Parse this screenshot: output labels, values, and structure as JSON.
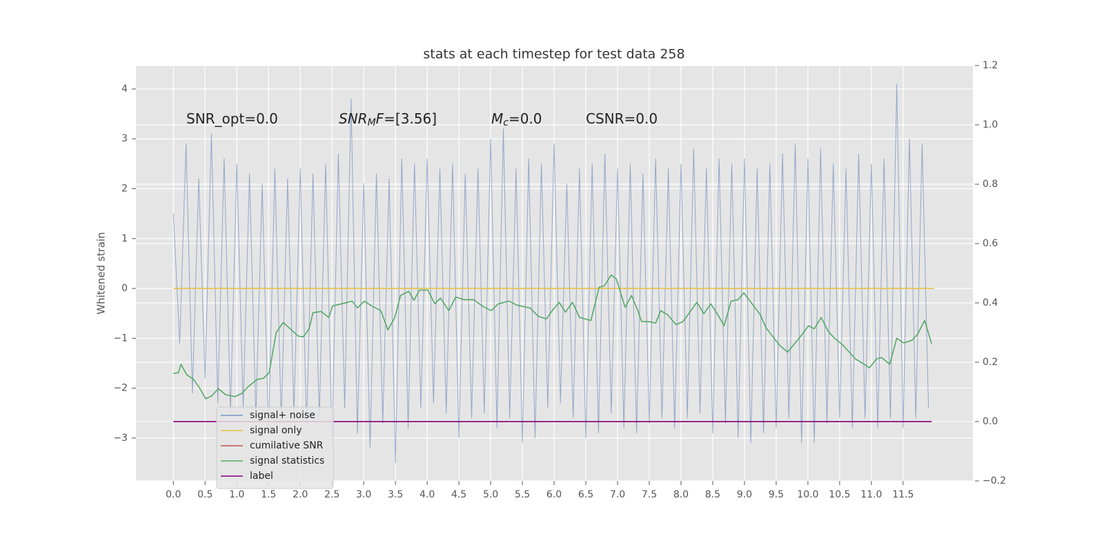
{
  "chart_data": {
    "type": "line",
    "title": "stats at each timestep for test data 258",
    "y_label": "Whitened strain",
    "background": "#e5e5e5",
    "grid": true,
    "legend": "lower left",
    "xlim": [
      -0.59,
      12.6
    ],
    "ylim": [
      -3.86,
      4.47
    ],
    "y2lim": [
      -0.2,
      1.2
    ],
    "xticks": [
      {
        "value": 0,
        "label": "0.0"
      },
      0.5,
      {
        "value": 1,
        "label": "1.0"
      },
      1.5,
      {
        "value": 2,
        "label": "2.0"
      },
      2.5,
      {
        "value": 3,
        "label": "3.0"
      },
      3.5,
      {
        "value": 4,
        "label": "4.0"
      },
      4.5,
      {
        "value": 5,
        "label": "5.0"
      },
      5.5,
      {
        "value": 6,
        "label": "6.0"
      },
      6.5,
      {
        "value": 7,
        "label": "7.0"
      },
      7.5,
      {
        "value": 8,
        "label": "8.0"
      },
      8.5,
      {
        "value": 9,
        "label": "9.0"
      },
      9.5,
      {
        "value": 10,
        "label": "10.0"
      },
      10.5,
      {
        "value": 11,
        "label": "11.0"
      },
      11.5
    ],
    "yticks": [
      {
        "value": -3,
        "label": "−3"
      },
      {
        "value": -2,
        "label": "−2"
      },
      {
        "value": -1,
        "label": "−1"
      },
      0,
      1,
      2,
      3,
      4
    ],
    "y2ticks": [
      {
        "value": -0.2,
        "label": "−0.2"
      },
      {
        "value": 0,
        "label": "0.0"
      },
      0.2,
      0.4,
      0.6,
      0.8,
      {
        "value": 1,
        "label": "1.0"
      },
      1.2
    ],
    "annotations": [
      [
        {
          "text": "SNR_opt=0.0"
        }
      ],
      [
        {
          "text": "SNR",
          "italic": true
        },
        {
          "text": "M",
          "italic": true,
          "sub": true
        },
        {
          "text": "F",
          "italic": true
        },
        {
          "text": "=[3.56]"
        }
      ],
      [
        {
          "text": "M",
          "italic": true
        },
        {
          "text": "c",
          "italic": true,
          "sub": true
        },
        {
          "text": "=0.0"
        }
      ],
      [
        {
          "text": "CSNR=0.0"
        }
      ]
    ],
    "series": [
      {
        "name": "signal+ noise",
        "color": "#4c72b0",
        "alpha": 0.55,
        "x": [
          0,
          0.1,
          0.2,
          0.3,
          0.4,
          0.5,
          0.6,
          0.7,
          0.8,
          0.9,
          1,
          1.1,
          1.2,
          1.3,
          1.4,
          1.5,
          1.6,
          1.7,
          1.8,
          1.9,
          2,
          2.1,
          2.2,
          2.3,
          2.4,
          2.5,
          2.6,
          2.7,
          2.8,
          2.9,
          3,
          3.1,
          3.2,
          3.3,
          3.4,
          3.5,
          3.6,
          3.7,
          3.8,
          3.9,
          4,
          4.1,
          4.2,
          4.3,
          4.4,
          4.5,
          4.6,
          4.7,
          4.8,
          4.9,
          5,
          5.1,
          5.2,
          5.3,
          5.4,
          5.5,
          5.6,
          5.7,
          5.8,
          5.9,
          6,
          6.1,
          6.2,
          6.3,
          6.4,
          6.5,
          6.6,
          6.7,
          6.8,
          6.9,
          7,
          7.1,
          7.2,
          7.3,
          7.4,
          7.5,
          7.6,
          7.7,
          7.8,
          7.9,
          8,
          8.1,
          8.2,
          8.3,
          8.4,
          8.5,
          8.6,
          8.7,
          8.8,
          8.9,
          9,
          9.1,
          9.2,
          9.3,
          9.4,
          9.5,
          9.6,
          9.7,
          9.8,
          9.9,
          10,
          10.1,
          10.2,
          10.3,
          10.4,
          10.5,
          10.6,
          10.7,
          10.8,
          10.9,
          11,
          11.1,
          11.2,
          11.3,
          11.4,
          11.5,
          11.6,
          11.7,
          11.8,
          11.9
        ],
        "values": [
          1.5,
          -1.1,
          2.9,
          -2.1,
          2.2,
          -1.8,
          3.1,
          -2.3,
          2.6,
          -2.5,
          2.5,
          -2.4,
          2.3,
          -2.6,
          2.1,
          -2.9,
          2.4,
          -2.7,
          2.2,
          -2.5,
          2.4,
          -2.8,
          2.3,
          -2.6,
          2.5,
          -3.1,
          2.7,
          -2.4,
          3.8,
          -2.9,
          2.1,
          -3.2,
          2.3,
          -2.7,
          2.2,
          -3.5,
          2.6,
          -2.8,
          2.5,
          -2.4,
          2.6,
          -2.3,
          2.4,
          -2.5,
          2.5,
          -3.0,
          2.3,
          -2.6,
          2.4,
          -2.5,
          3.0,
          -2.8,
          3.2,
          -2.6,
          2.4,
          -3.1,
          2.6,
          -3.0,
          2.5,
          -2.4,
          2.9,
          -2.3,
          2.1,
          -2.6,
          2.4,
          -3.0,
          2.5,
          -2.9,
          2.7,
          -2.5,
          2.4,
          -2.8,
          2.5,
          -2.9,
          2.3,
          -2.7,
          2.6,
          -2.6,
          2.4,
          -2.8,
          2.5,
          -2.6,
          2.8,
          -2.5,
          2.4,
          -2.9,
          2.6,
          -2.7,
          2.5,
          -3.0,
          2.6,
          -3.1,
          2.4,
          -2.9,
          2.5,
          -2.8,
          2.7,
          -2.6,
          2.9,
          -3.1,
          2.6,
          -3.1,
          2.8,
          -2.7,
          2.5,
          -2.6,
          2.4,
          -2.8,
          2.7,
          -2.6,
          2.5,
          -2.8,
          2.6,
          -2.6,
          4.1,
          -2.8,
          3.0,
          -2.6,
          2.9,
          -2.4
        ]
      },
      {
        "name": "signal only",
        "color": "#e8c04a",
        "x": [
          0,
          11.99
        ],
        "values": [
          0,
          0
        ]
      },
      {
        "name": "cumilative SNR",
        "color": "#c44e52",
        "axis": "y2",
        "x": [
          0,
          11.95
        ],
        "values": [
          0,
          0
        ]
      },
      {
        "name": "signal statistics",
        "color": "#55a868",
        "axis": "y2",
        "x": [
          0,
          0.08,
          0.12,
          0.21,
          0.32,
          0.42,
          0.51,
          0.6,
          0.71,
          0.82,
          0.97,
          1.08,
          1.18,
          1.32,
          1.42,
          1.51,
          1.62,
          1.73,
          1.84,
          1.97,
          2.05,
          2.14,
          2.2,
          2.33,
          2.45,
          2.51,
          2.65,
          2.82,
          2.9,
          3.01,
          3.14,
          3.27,
          3.38,
          3.49,
          3.58,
          3.71,
          3.79,
          3.88,
          4.01,
          4.12,
          4.21,
          4.34,
          4.45,
          4.58,
          4.73,
          4.88,
          5.01,
          5.12,
          5.29,
          5.42,
          5.62,
          5.75,
          5.88,
          5.97,
          6.08,
          6.18,
          6.29,
          6.4,
          6.58,
          6.71,
          6.79,
          6.9,
          6.98,
          7.12,
          7.22,
          7.32,
          7.38,
          7.49,
          7.6,
          7.68,
          7.79,
          7.92,
          8.03,
          8.14,
          8.25,
          8.36,
          8.47,
          8.58,
          8.68,
          8.79,
          8.9,
          8.99,
          9.12,
          9.25,
          9.34,
          9.55,
          9.68,
          9.88,
          10.01,
          10.1,
          10.21,
          10.32,
          10.42,
          10.55,
          10.75,
          10.86,
          10.97,
          11.08,
          11.16,
          11.29,
          11.4,
          11.51,
          11.64,
          11.73,
          11.84,
          11.95
        ],
        "values": [
          0.162,
          0.165,
          0.193,
          0.158,
          0.142,
          0.111,
          0.077,
          0.086,
          0.111,
          0.091,
          0.084,
          0.095,
          0.118,
          0.142,
          0.146,
          0.165,
          0.3,
          0.334,
          0.313,
          0.288,
          0.286,
          0.313,
          0.367,
          0.371,
          0.351,
          0.39,
          0.397,
          0.406,
          0.383,
          0.406,
          0.388,
          0.374,
          0.309,
          0.351,
          0.425,
          0.439,
          0.409,
          0.443,
          0.443,
          0.397,
          0.416,
          0.374,
          0.42,
          0.411,
          0.411,
          0.388,
          0.374,
          0.397,
          0.406,
          0.392,
          0.383,
          0.355,
          0.346,
          0.374,
          0.402,
          0.369,
          0.402,
          0.351,
          0.341,
          0.453,
          0.457,
          0.494,
          0.481,
          0.385,
          0.425,
          0.374,
          0.337,
          0.337,
          0.332,
          0.374,
          0.36,
          0.327,
          0.337,
          0.369,
          0.402,
          0.364,
          0.397,
          0.36,
          0.323,
          0.406,
          0.411,
          0.434,
          0.397,
          0.36,
          0.316,
          0.258,
          0.234,
          0.286,
          0.323,
          0.313,
          0.351,
          0.304,
          0.281,
          0.258,
          0.211,
          0.197,
          0.181,
          0.211,
          0.216,
          0.193,
          0.281,
          0.265,
          0.274,
          0.295,
          0.341,
          0.262
        ]
      },
      {
        "name": "label",
        "color": "#800080",
        "axis": "y2",
        "x": [
          0,
          11.95
        ],
        "values": [
          0,
          0
        ]
      }
    ]
  }
}
